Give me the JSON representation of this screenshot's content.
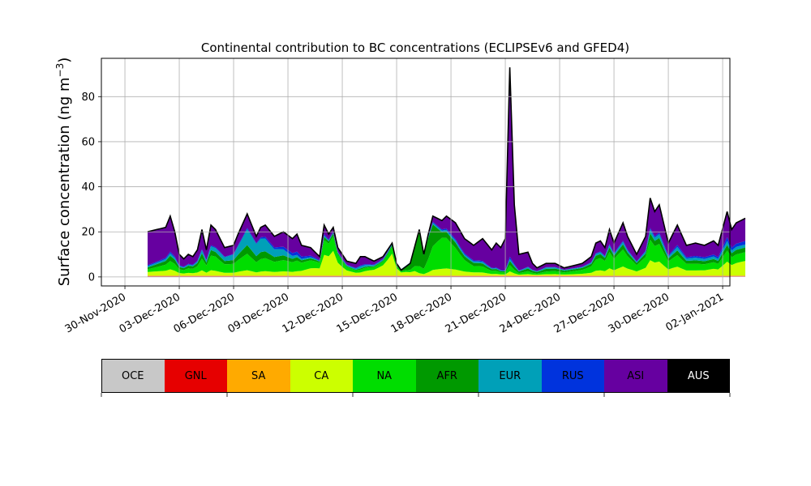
{
  "chart_data": {
    "type": "area",
    "title": "Continental contribution to BC concentrations (ECLIPSEv6 and GFED4)",
    "ylabel": "Surface concentration (ng m",
    "ylabel_sup": "−3",
    "ylabel_close": ")",
    "ylim": [
      -4,
      97
    ],
    "yticks": [
      0,
      20,
      40,
      60,
      80
    ],
    "x_start": "2020-11-30",
    "x_end": "2021-01-02",
    "xticks": [
      "30-Nov-2020",
      "03-Dec-2020",
      "06-Dec-2020",
      "09-Dec-2020",
      "12-Dec-2020",
      "15-Dec-2020",
      "18-Dec-2020",
      "21-Dec-2020",
      "24-Dec-2020",
      "27-Dec-2020",
      "30-Dec-2020",
      "02-Jan-2021"
    ],
    "grid": true,
    "stacked": true,
    "series_order": [
      "OCE",
      "GNL",
      "SA",
      "CA",
      "NA",
      "AFR",
      "EUR",
      "RUS",
      "ASI",
      "AUS"
    ],
    "series_colors": {
      "OCE": "#c8c8c8",
      "GNL": "#e60000",
      "SA": "#ffaa00",
      "CA": "#ccff00",
      "NA": "#00dd00",
      "AFR": "#009900",
      "EUR": "#00a0b8",
      "RUS": "#0033dd",
      "ASI": "#6600a0",
      "AUS": "#000000"
    },
    "total_keypoints": [
      [
        "2020-12-01 06:00",
        20
      ],
      [
        "2020-12-01 18:00",
        21
      ],
      [
        "2020-12-02 06:00",
        22
      ],
      [
        "2020-12-02 12:00",
        27
      ],
      [
        "2020-12-02 18:00",
        20
      ],
      [
        "2020-12-03 00:00",
        10
      ],
      [
        "2020-12-03 06:00",
        8
      ],
      [
        "2020-12-03 12:00",
        10
      ],
      [
        "2020-12-03 18:00",
        9
      ],
      [
        "2020-12-04 00:00",
        12
      ],
      [
        "2020-12-04 06:00",
        21
      ],
      [
        "2020-12-04 12:00",
        12
      ],
      [
        "2020-12-04 18:00",
        23
      ],
      [
        "2020-12-05 00:00",
        21
      ],
      [
        "2020-12-05 12:00",
        13
      ],
      [
        "2020-12-06 00:00",
        14
      ],
      [
        "2020-12-06 06:00",
        19
      ],
      [
        "2020-12-06 18:00",
        28
      ],
      [
        "2020-12-07 06:00",
        18
      ],
      [
        "2020-12-07 12:00",
        22
      ],
      [
        "2020-12-07 18:00",
        23
      ],
      [
        "2020-12-08 06:00",
        18
      ],
      [
        "2020-12-08 18:00",
        20
      ],
      [
        "2020-12-09 06:00",
        17
      ],
      [
        "2020-12-09 12:00",
        19
      ],
      [
        "2020-12-09 18:00",
        14
      ],
      [
        "2020-12-10 06:00",
        13
      ],
      [
        "2020-12-10 18:00",
        9
      ],
      [
        "2020-12-11 00:00",
        23
      ],
      [
        "2020-12-11 06:00",
        19
      ],
      [
        "2020-12-11 12:00",
        22
      ],
      [
        "2020-12-11 18:00",
        13
      ],
      [
        "2020-12-12 06:00",
        7
      ],
      [
        "2020-12-12 18:00",
        6
      ],
      [
        "2020-12-13 00:00",
        9
      ],
      [
        "2020-12-13 06:00",
        9
      ],
      [
        "2020-12-13 18:00",
        7
      ],
      [
        "2020-12-14 06:00",
        9
      ],
      [
        "2020-12-14 18:00",
        15
      ],
      [
        "2020-12-15 00:00",
        6
      ],
      [
        "2020-12-15 06:00",
        3
      ],
      [
        "2020-12-15 18:00",
        6
      ],
      [
        "2020-12-16 06:00",
        21
      ],
      [
        "2020-12-16 12:00",
        10
      ],
      [
        "2020-12-16 18:00",
        19
      ],
      [
        "2020-12-17 00:00",
        27
      ],
      [
        "2020-12-17 12:00",
        25
      ],
      [
        "2020-12-17 18:00",
        27
      ],
      [
        "2020-12-18 06:00",
        24
      ],
      [
        "2020-12-18 18:00",
        17
      ],
      [
        "2020-12-19 06:00",
        14
      ],
      [
        "2020-12-19 18:00",
        17
      ],
      [
        "2020-12-20 06:00",
        12
      ],
      [
        "2020-12-20 12:00",
        15
      ],
      [
        "2020-12-20 18:00",
        13
      ],
      [
        "2020-12-21 00:00",
        17
      ],
      [
        "2020-12-21 06:00",
        93
      ],
      [
        "2020-12-21 12:00",
        32
      ],
      [
        "2020-12-21 18:00",
        10
      ],
      [
        "2020-12-22 06:00",
        11
      ],
      [
        "2020-12-22 12:00",
        6
      ],
      [
        "2020-12-22 18:00",
        4
      ],
      [
        "2020-12-23 06:00",
        6
      ],
      [
        "2020-12-23 18:00",
        6
      ],
      [
        "2020-12-24 06:00",
        4
      ],
      [
        "2020-12-24 18:00",
        5
      ],
      [
        "2020-12-25 06:00",
        6
      ],
      [
        "2020-12-25 18:00",
        9
      ],
      [
        "2020-12-26 00:00",
        15
      ],
      [
        "2020-12-26 06:00",
        16
      ],
      [
        "2020-12-26 12:00",
        13
      ],
      [
        "2020-12-26 18:00",
        21
      ],
      [
        "2020-12-27 00:00",
        15
      ],
      [
        "2020-12-27 12:00",
        24
      ],
      [
        "2020-12-27 18:00",
        18
      ],
      [
        "2020-12-28 06:00",
        10
      ],
      [
        "2020-12-28 18:00",
        18
      ],
      [
        "2020-12-29 00:00",
        35
      ],
      [
        "2020-12-29 06:00",
        29
      ],
      [
        "2020-12-29 12:00",
        32
      ],
      [
        "2020-12-30 00:00",
        15
      ],
      [
        "2020-12-30 12:00",
        23
      ],
      [
        "2020-12-31 00:00",
        14
      ],
      [
        "2020-12-31 12:00",
        15
      ],
      [
        "2021-01-01 00:00",
        14
      ],
      [
        "2021-01-01 12:00",
        16
      ],
      [
        "2021-01-01 18:00",
        14
      ],
      [
        "2021-01-02 06:00",
        29
      ],
      [
        "2021-01-02 12:00",
        21
      ],
      [
        "2021-01-02 18:00",
        24
      ],
      [
        "2021-01-03 06:00",
        26
      ]
    ],
    "composition_keypoints": [
      [
        "2020-12-01 06:00",
        {
          "CA": 0.08,
          "NA": 0.06,
          "AFR": 0.04,
          "EUR": 0.03,
          "RUS": 0.02
        }
      ],
      [
        "2020-12-03 12:00",
        {
          "CA": 0.12,
          "NA": 0.2,
          "AFR": 0.12,
          "EUR": 0.05,
          "RUS": 0.03
        }
      ],
      [
        "2020-12-05 00:00",
        {
          "CA": 0.1,
          "NA": 0.3,
          "AFR": 0.1,
          "EUR": 0.08,
          "RUS": 0.02
        }
      ],
      [
        "2020-12-07 06:00",
        {
          "CA": 0.08,
          "NA": 0.25,
          "AFR": 0.15,
          "EUR": 0.3,
          "RUS": 0.02
        }
      ],
      [
        "2020-12-09 12:00",
        {
          "CA": 0.1,
          "NA": 0.25,
          "AFR": 0.08,
          "EUR": 0.05,
          "RUS": 0.08
        }
      ],
      [
        "2020-12-11 12:00",
        {
          "CA": 0.5,
          "NA": 0.3,
          "AFR": 0.05,
          "EUR": 0.02,
          "RUS": 0.01
        }
      ],
      [
        "2020-12-13 00:00",
        {
          "CA": 0.15,
          "NA": 0.15,
          "AFR": 0.05,
          "EUR": 0.1,
          "RUS": 0.05
        }
      ],
      [
        "2020-12-14 18:00",
        {
          "CA": 0.65,
          "NA": 0.2,
          "AFR": 0.05,
          "EUR": 0.03,
          "RUS": 0.02
        }
      ],
      [
        "2020-12-16 06:00",
        {
          "CA": 0.05,
          "NA": 0.15,
          "AFR": 0.75,
          "EUR": 0.02,
          "RUS": 0.01
        }
      ],
      [
        "2020-12-17 12:00",
        {
          "CA": 0.12,
          "NA": 0.55,
          "AFR": 0.1,
          "EUR": 0.03,
          "RUS": 0.02
        }
      ],
      [
        "2020-12-19 06:00",
        {
          "CA": 0.1,
          "NA": 0.2,
          "AFR": 0.1,
          "EUR": 0.05,
          "RUS": 0.03
        }
      ],
      [
        "2020-12-21 06:00",
        {
          "CA": 0.02,
          "NA": 0.03,
          "AFR": 0.02,
          "EUR": 0.01,
          "RUS": 0.01
        }
      ],
      [
        "2020-12-23 06:00",
        {
          "CA": 0.1,
          "NA": 0.2,
          "AFR": 0.2,
          "EUR": 0.1,
          "RUS": 0.02
        }
      ],
      [
        "2020-12-26 12:00",
        {
          "CA": 0.15,
          "NA": 0.35,
          "AFR": 0.1,
          "EUR": 0.05,
          "RUS": 0.02
        }
      ],
      [
        "2020-12-29 06:00",
        {
          "CA": 0.2,
          "NA": 0.25,
          "AFR": 0.08,
          "EUR": 0.05,
          "RUS": 0.02
        }
      ],
      [
        "2020-12-31 12:00",
        {
          "CA": 0.15,
          "NA": 0.2,
          "AFR": 0.1,
          "EUR": 0.08,
          "RUS": 0.05
        }
      ],
      [
        "2021-01-03 06:00",
        {
          "CA": 0.25,
          "NA": 0.15,
          "AFR": 0.08,
          "EUR": 0.05,
          "RUS": 0.06
        }
      ]
    ]
  },
  "legend": {
    "items": [
      {
        "label": "OCE",
        "color": "#c8c8c8"
      },
      {
        "label": "GNL",
        "color": "#e60000"
      },
      {
        "label": "SA",
        "color": "#ffaa00"
      },
      {
        "label": "CA",
        "color": "#ccff00"
      },
      {
        "label": "NA",
        "color": "#00dd00"
      },
      {
        "label": "AFR",
        "color": "#009900"
      },
      {
        "label": "EUR",
        "color": "#00a0b8"
      },
      {
        "label": "RUS",
        "color": "#0033dd"
      },
      {
        "label": "ASI",
        "color": "#6600a0"
      },
      {
        "label": "AUS",
        "color": "#000000"
      }
    ]
  }
}
